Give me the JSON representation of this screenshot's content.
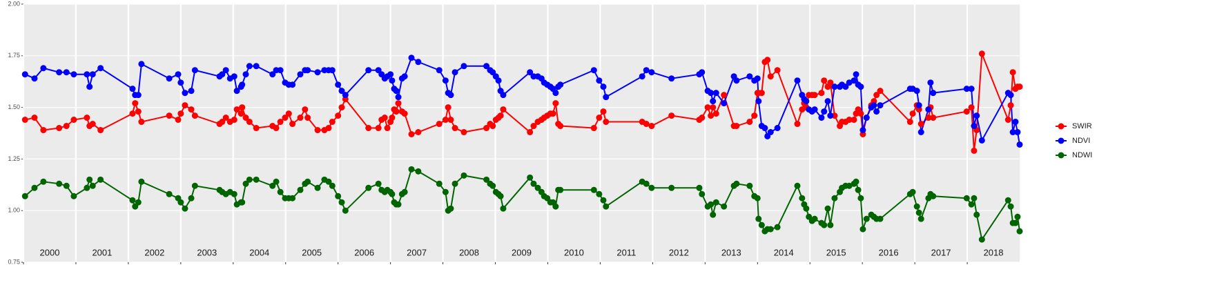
{
  "chart_data": {
    "type": "line",
    "x": [
      2000.03,
      2000.21,
      2000.38,
      2000.68,
      2000.82,
      2000.96,
      2001.21,
      2001.26,
      2001.32,
      2001.47,
      2002.08,
      2002.13,
      2002.19,
      2002.25,
      2002.78,
      2002.95,
      2003.0,
      2003.08,
      2003.2,
      2003.27,
      2003.74,
      2003.79,
      2003.86,
      2003.94,
      2004.02,
      2004.07,
      2004.15,
      2004.17,
      2004.24,
      2004.31,
      2004.44,
      2004.75,
      2004.82,
      2004.9,
      2004.99,
      2005.06,
      2005.13,
      2005.28,
      2005.37,
      2005.42,
      2005.61,
      2005.74,
      2005.82,
      2005.89,
      2006.0,
      2006.07,
      2006.14,
      2006.58,
      2006.77,
      2006.83,
      2006.89,
      2006.94,
      2007.0,
      2007.03,
      2007.07,
      2007.11,
      2007.15,
      2007.22,
      2007.27,
      2007.4,
      2007.53,
      2007.93,
      2008.05,
      2008.1,
      2008.15,
      2008.23,
      2008.4,
      2008.83,
      2008.9,
      2008.95,
      2009.01,
      2009.06,
      2009.1,
      2009.15,
      2009.66,
      2009.73,
      2009.81,
      2009.88,
      2009.93,
      2009.99,
      2010.05,
      2010.1,
      2010.15,
      2010.2,
      2010.24,
      2010.88,
      2010.98,
      2011.06,
      2011.11,
      2011.8,
      2011.88,
      2011.98,
      2012.36,
      2012.89,
      2012.94,
      2013.05,
      2013.11,
      2013.15,
      2013.21,
      2013.36,
      2013.55,
      2013.6,
      2013.85,
      2013.94,
      2014.0,
      2014.02,
      2014.08,
      2014.14,
      2014.19,
      2014.25,
      2014.38,
      2014.76,
      2014.85,
      2014.89,
      2014.93,
      2014.98,
      2015.04,
      2015.09,
      2015.22,
      2015.27,
      2015.34,
      2015.39,
      2015.47,
      2015.57,
      2015.61,
      2015.68,
      2015.75,
      2015.84,
      2015.88,
      2015.92,
      2015.97,
      2016.01,
      2016.08,
      2016.17,
      2016.22,
      2016.27,
      2016.34,
      2016.91,
      2016.96,
      2017.04,
      2017.08,
      2017.12,
      2017.26,
      2017.3,
      2017.35,
      2017.99,
      2018.08,
      2018.13,
      2018.18,
      2018.28,
      2018.78,
      2018.83,
      2018.87,
      2018.92,
      2018.96,
      2019.0
    ],
    "series": [
      {
        "name": "SWIR",
        "color": "#ff0000",
        "values": [
          1.44,
          1.45,
          1.39,
          1.4,
          1.41,
          1.44,
          1.45,
          1.41,
          1.42,
          1.39,
          1.47,
          1.52,
          1.48,
          1.43,
          1.46,
          1.44,
          1.47,
          1.51,
          1.49,
          1.46,
          1.42,
          1.43,
          1.45,
          1.43,
          1.44,
          1.49,
          1.47,
          1.5,
          1.45,
          1.43,
          1.4,
          1.41,
          1.4,
          1.43,
          1.45,
          1.47,
          1.42,
          1.45,
          1.49,
          1.45,
          1.39,
          1.39,
          1.4,
          1.43,
          1.46,
          1.5,
          1.54,
          1.4,
          1.4,
          1.44,
          1.45,
          1.4,
          1.43,
          1.45,
          1.49,
          1.48,
          1.52,
          1.48,
          1.47,
          1.37,
          1.38,
          1.42,
          1.44,
          1.5,
          1.44,
          1.4,
          1.38,
          1.4,
          1.42,
          1.41,
          1.44,
          1.45,
          1.46,
          1.49,
          1.38,
          1.41,
          1.43,
          1.44,
          1.45,
          1.46,
          1.47,
          1.47,
          1.52,
          1.42,
          1.41,
          1.4,
          1.45,
          1.48,
          1.43,
          1.43,
          1.42,
          1.41,
          1.46,
          1.44,
          1.45,
          1.5,
          1.46,
          1.5,
          1.47,
          1.56,
          1.41,
          1.41,
          1.43,
          1.46,
          1.57,
          1.57,
          1.57,
          1.72,
          1.73,
          1.65,
          1.68,
          1.42,
          1.49,
          1.52,
          1.5,
          1.56,
          1.56,
          1.56,
          1.57,
          1.63,
          1.6,
          1.62,
          1.46,
          1.41,
          1.43,
          1.43,
          1.44,
          1.44,
          1.47,
          1.49,
          1.47,
          1.37,
          1.45,
          1.51,
          1.53,
          1.56,
          1.58,
          1.43,
          1.47,
          1.51,
          1.49,
          1.42,
          1.45,
          1.5,
          1.45,
          1.48,
          1.5,
          1.29,
          1.39,
          1.76,
          1.44,
          1.51,
          1.67,
          1.59,
          1.6,
          1.6
        ]
      },
      {
        "name": "NDVI",
        "color": "#0000ff",
        "values": [
          1.66,
          1.64,
          1.69,
          1.67,
          1.67,
          1.66,
          1.66,
          1.6,
          1.66,
          1.69,
          1.59,
          1.56,
          1.56,
          1.71,
          1.64,
          1.66,
          1.62,
          1.57,
          1.58,
          1.68,
          1.65,
          1.66,
          1.68,
          1.64,
          1.65,
          1.58,
          1.6,
          1.61,
          1.66,
          1.7,
          1.7,
          1.66,
          1.68,
          1.68,
          1.62,
          1.61,
          1.61,
          1.66,
          1.68,
          1.68,
          1.67,
          1.68,
          1.68,
          1.68,
          1.61,
          1.58,
          1.56,
          1.68,
          1.68,
          1.66,
          1.64,
          1.65,
          1.66,
          1.63,
          1.59,
          1.58,
          1.55,
          1.64,
          1.65,
          1.74,
          1.72,
          1.68,
          1.63,
          1.57,
          1.56,
          1.67,
          1.7,
          1.7,
          1.68,
          1.67,
          1.65,
          1.63,
          1.58,
          1.56,
          1.67,
          1.65,
          1.65,
          1.64,
          1.62,
          1.61,
          1.6,
          1.59,
          1.57,
          1.6,
          1.61,
          1.68,
          1.63,
          1.6,
          1.55,
          1.65,
          1.68,
          1.67,
          1.64,
          1.66,
          1.67,
          1.58,
          1.57,
          1.53,
          1.57,
          1.52,
          1.65,
          1.63,
          1.65,
          1.63,
          1.64,
          1.53,
          1.41,
          1.4,
          1.36,
          1.38,
          1.4,
          1.63,
          1.56,
          1.54,
          1.53,
          1.49,
          1.48,
          1.49,
          1.45,
          1.48,
          1.53,
          1.46,
          1.6,
          1.6,
          1.61,
          1.6,
          1.62,
          1.63,
          1.66,
          1.61,
          1.6,
          1.39,
          1.45,
          1.5,
          1.51,
          1.48,
          1.51,
          1.59,
          1.59,
          1.58,
          1.51,
          1.38,
          1.49,
          1.62,
          1.57,
          1.59,
          1.59,
          1.41,
          1.46,
          1.34,
          1.57,
          1.56,
          1.38,
          1.43,
          1.38,
          1.32
        ]
      },
      {
        "name": "NDWI",
        "color": "#006400",
        "values": [
          1.07,
          1.11,
          1.14,
          1.13,
          1.12,
          1.07,
          1.11,
          1.15,
          1.12,
          1.15,
          1.05,
          1.02,
          1.04,
          1.14,
          1.08,
          1.06,
          1.04,
          1.01,
          1.06,
          1.12,
          1.1,
          1.09,
          1.08,
          1.09,
          1.08,
          1.03,
          1.04,
          1.04,
          1.13,
          1.15,
          1.15,
          1.12,
          1.14,
          1.09,
          1.06,
          1.06,
          1.06,
          1.1,
          1.13,
          1.14,
          1.11,
          1.15,
          1.14,
          1.12,
          1.07,
          1.04,
          1.0,
          1.11,
          1.13,
          1.1,
          1.09,
          1.1,
          1.09,
          1.08,
          1.04,
          1.03,
          1.03,
          1.08,
          1.09,
          1.2,
          1.19,
          1.13,
          1.09,
          1.0,
          1.01,
          1.13,
          1.17,
          1.15,
          1.13,
          1.12,
          1.09,
          1.08,
          1.07,
          1.01,
          1.16,
          1.13,
          1.11,
          1.09,
          1.07,
          1.06,
          1.04,
          1.04,
          1.02,
          1.1,
          1.1,
          1.1,
          1.08,
          1.05,
          1.02,
          1.14,
          1.13,
          1.11,
          1.11,
          1.11,
          1.08,
          1.02,
          1.03,
          0.98,
          1.04,
          1.02,
          1.12,
          1.13,
          1.12,
          1.07,
          1.06,
          0.96,
          0.93,
          0.9,
          0.91,
          0.91,
          0.92,
          1.12,
          1.06,
          1.03,
          1.01,
          0.97,
          0.95,
          0.96,
          0.94,
          0.93,
          1.01,
          0.93,
          1.06,
          1.09,
          1.11,
          1.12,
          1.12,
          1.13,
          1.14,
          1.1,
          1.06,
          0.91,
          0.96,
          0.98,
          0.97,
          0.96,
          0.96,
          1.08,
          1.09,
          1.02,
          0.99,
          0.96,
          1.06,
          1.08,
          1.07,
          1.06,
          1.03,
          1.06,
          0.98,
          0.86,
          1.05,
          1.02,
          0.94,
          0.94,
          0.97,
          0.9
        ]
      }
    ],
    "xlim": [
      2000,
      2019
    ],
    "xticks": [
      {
        "value": 2000,
        "label": "2000"
      },
      {
        "value": 2001,
        "label": "2001"
      },
      {
        "value": 2002,
        "label": "2002"
      },
      {
        "value": 2003,
        "label": "2003"
      },
      {
        "value": 2004,
        "label": "2004"
      },
      {
        "value": 2005,
        "label": "2005"
      },
      {
        "value": 2006,
        "label": "2006"
      },
      {
        "value": 2007,
        "label": "2007"
      },
      {
        "value": 2008,
        "label": "2008"
      },
      {
        "value": 2009,
        "label": "2009"
      },
      {
        "value": 2010,
        "label": "2010"
      },
      {
        "value": 2011,
        "label": "2011"
      },
      {
        "value": 2012,
        "label": "2012"
      },
      {
        "value": 2013,
        "label": "2013"
      },
      {
        "value": 2014,
        "label": "2014"
      },
      {
        "value": 2015,
        "label": "2015"
      },
      {
        "value": 2016,
        "label": "2016"
      },
      {
        "value": 2017,
        "label": "2017"
      },
      {
        "value": 2018,
        "label": "2018"
      }
    ],
    "ylim": [
      0.75,
      2.0
    ],
    "yticks": [
      {
        "value": 0.75,
        "label": "0.75"
      },
      {
        "value": 1.0,
        "label": "1.00"
      },
      {
        "value": 1.25,
        "label": "1.25"
      },
      {
        "value": 1.5,
        "label": "1.50"
      },
      {
        "value": 1.75,
        "label": "1.75"
      },
      {
        "value": 2.0,
        "label": "2.00"
      }
    ],
    "grid": true,
    "legend": "right"
  }
}
